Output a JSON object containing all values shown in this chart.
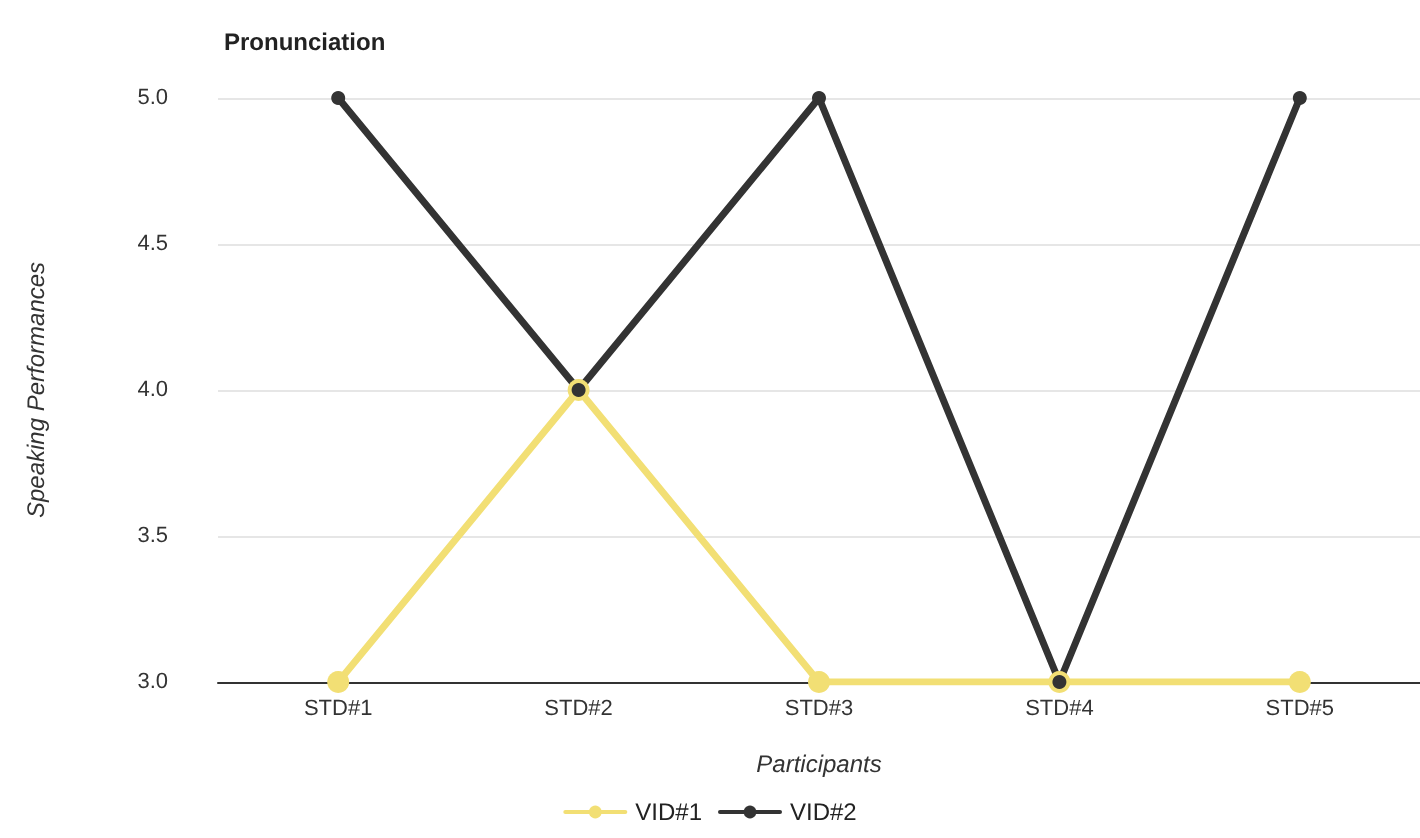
{
  "chart_data": {
    "type": "line",
    "title": "Pronunciation",
    "xlabel": "Participants",
    "ylabel": "Speaking Performances",
    "categories": [
      "STD#1",
      "STD#2",
      "STD#3",
      "STD#4",
      "STD#5"
    ],
    "series": [
      {
        "name": "VID#1",
        "color": "#f2df74",
        "values": [
          3,
          4,
          3,
          3,
          3
        ]
      },
      {
        "name": "VID#2",
        "color": "#333333",
        "values": [
          5,
          4,
          5,
          3,
          5
        ]
      }
    ],
    "ylim": [
      3,
      5
    ],
    "yticks": [
      {
        "value": 3,
        "label": "3.0"
      },
      {
        "value": 3.5,
        "label": "3.5"
      },
      {
        "value": 4,
        "label": "4.0"
      },
      {
        "value": 4.5,
        "label": "4.5"
      },
      {
        "value": 5,
        "label": "5.0"
      }
    ],
    "grid": "y",
    "legend": "bottom",
    "marker": "circle",
    "line_style": "solid"
  }
}
